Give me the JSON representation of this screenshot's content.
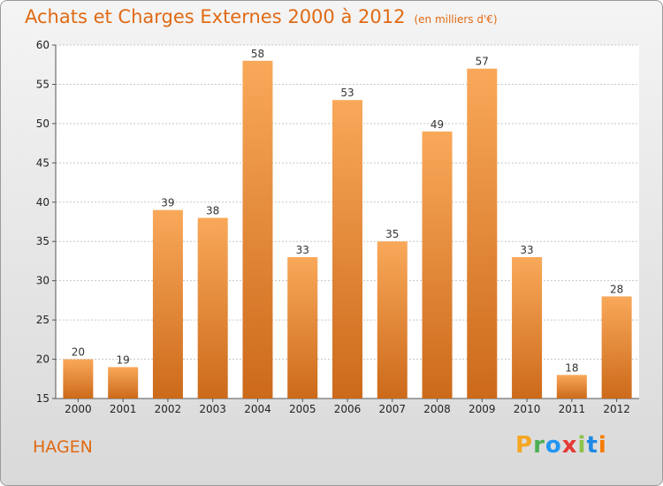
{
  "title": "Achats et Charges Externes 2000 à 2012",
  "subtitle": "(en milliers d'€)",
  "place": "HAGEN",
  "logo": {
    "letters": [
      "P",
      "r",
      "o",
      "x",
      "i",
      "t",
      "i"
    ],
    "colors": [
      "#f5a623",
      "#4caf50",
      "#2196f3",
      "#e53935",
      "#8bc34a",
      "#1e88e5",
      "#f57c00"
    ]
  },
  "colors": {
    "accent": "#e06a14",
    "bar_top": "#f9a85a",
    "bar_bottom": "#cc6a1a",
    "grid": "#c8c8c8"
  },
  "chart_data": {
    "type": "bar",
    "categories": [
      "2000",
      "2001",
      "2002",
      "2003",
      "2004",
      "2005",
      "2006",
      "2007",
      "2008",
      "2009",
      "2010",
      "2011",
      "2012"
    ],
    "values": [
      20,
      19,
      39,
      38,
      58,
      33,
      53,
      35,
      49,
      57,
      33,
      18,
      28
    ],
    "ylim": [
      15,
      60
    ],
    "yticks": [
      15,
      20,
      25,
      30,
      35,
      40,
      45,
      50,
      55,
      60
    ],
    "grid": true,
    "legend": "none"
  }
}
